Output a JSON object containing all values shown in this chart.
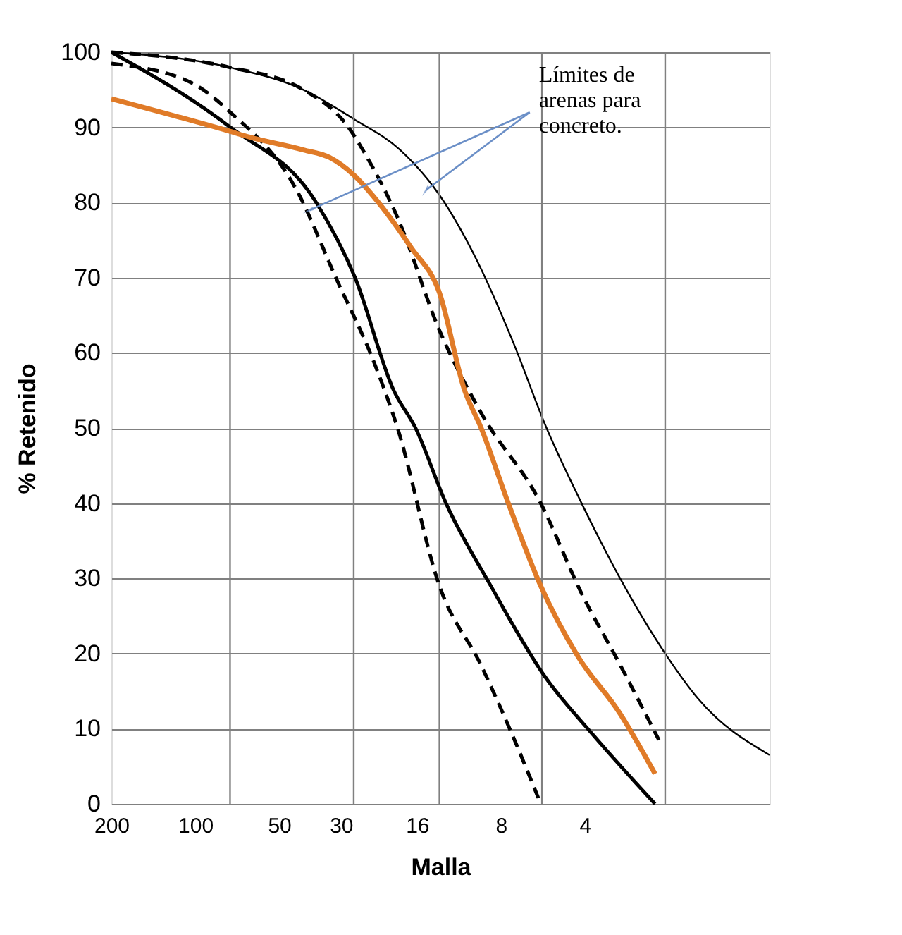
{
  "chart_data": {
    "type": "line",
    "xlabel": "Malla",
    "ylabel": "% Retenido",
    "annotations": [
      {
        "text": "Límites de arenas para concreto.",
        "x": 38.8,
        "y": 79
      }
    ],
    "log": "x",
    "xlim": [
      200,
      0.87
    ],
    "ylim": [
      0,
      100
    ],
    "xticks": [
      200,
      100,
      50,
      30,
      16,
      8,
      4
    ],
    "yticks": [
      0,
      10,
      20,
      30,
      40,
      50,
      60,
      70,
      80,
      90,
      100
    ],
    "grid": "y",
    "marker": "none",
    "ref_lines": [
      {
        "axis": "x",
        "value": 75,
        "label": null,
        "color": "#808080"
      },
      {
        "axis": "x",
        "value": 27,
        "label": null,
        "color": "#808080"
      },
      {
        "axis": "x",
        "value": 13.3,
        "label": null,
        "color": "#808080"
      },
      {
        "axis": "x",
        "value": 5.7,
        "label": null,
        "color": "#808080"
      },
      {
        "axis": "x",
        "value": 2.06,
        "label": null,
        "color": "#808080"
      }
    ],
    "series": [
      {
        "color": "#000000",
        "line_style": "solid",
        "x": [
          200,
          75.6,
          40.9,
          26.7,
          18.4,
          13.3,
          9.67,
          7.25,
          5.49,
          4.11,
          2.99,
          2.06,
          1.57,
          0.87
        ],
        "values": [
          100,
          98,
          95,
          91,
          87,
          81,
          72,
          61.5,
          50,
          40,
          30,
          20,
          14,
          6.5
        ]
      },
      {
        "color": "#000000",
        "line_style": "dashed",
        "x": [
          200,
          75.6,
          40.9,
          28.2,
          24.6,
          18.8,
          13.3,
          9.42,
          5.76,
          4.11,
          2.99,
          2.17
        ],
        "values": [
          100,
          98,
          95,
          90,
          86.5,
          78,
          63,
          52,
          40,
          28,
          18.5,
          8.5
        ]
      },
      {
        "color": "#000000",
        "line_style": "dashed",
        "x": [
          200,
          104,
          74.8,
          43.2,
          31.3,
          22.7,
          18.8,
          13.3,
          9.42,
          7.25,
          5.76
        ],
        "values": [
          98.5,
          96,
          92,
          81.6,
          70,
          58.5,
          50,
          29,
          18.4,
          9,
          0
        ]
      },
      {
        "color": "#000000",
        "line_style": "solid",
        "x": [
          200,
          74.8,
          36.8,
          26.7,
          19.4,
          16.2,
          12.6,
          8.7,
          5.58,
          3.7,
          2.24
        ],
        "values": [
          100,
          90,
          80,
          70,
          55,
          50,
          40,
          29,
          17,
          9,
          0
        ]
      },
      {
        "color": "#e07b28",
        "line_style": "solid",
        "x": [
          200,
          75.6,
          63.8,
          40.9,
          33,
          26.7,
          22,
          16.8,
          13.3,
          10.8,
          9.42,
          7.53,
          5.76,
          4.25,
          2.99,
          2.24
        ],
        "values": [
          93.8,
          89.5,
          88.7,
          87,
          86,
          83.5,
          80,
          74,
          68,
          55,
          50,
          40,
          29,
          19.7,
          12,
          4
        ]
      }
    ]
  }
}
